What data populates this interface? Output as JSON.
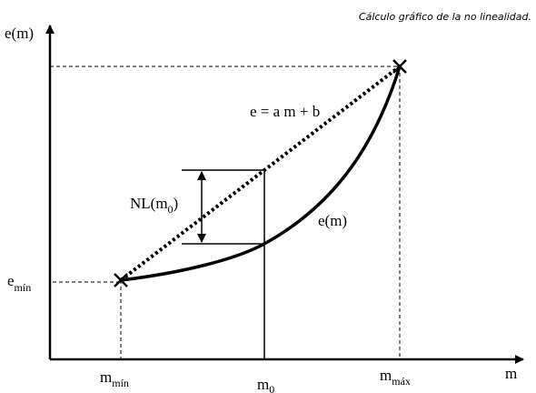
{
  "header": {
    "title": "Cálculo gráfico de la no linealidad."
  },
  "axes": {
    "y_label": "e(m)",
    "x_label": "m"
  },
  "labels": {
    "e_min": {
      "base": "e",
      "sub": "mín"
    },
    "m_min": {
      "base": "m",
      "sub": "mín"
    },
    "m_0": {
      "base": "m",
      "sub": "0"
    },
    "m_max": {
      "base": "m",
      "sub": "máx"
    },
    "line_eq": "e = a m + b",
    "nl": {
      "base": "NL(m",
      "sub": "0",
      "tail": ")"
    },
    "curve": "e(m)"
  }
}
